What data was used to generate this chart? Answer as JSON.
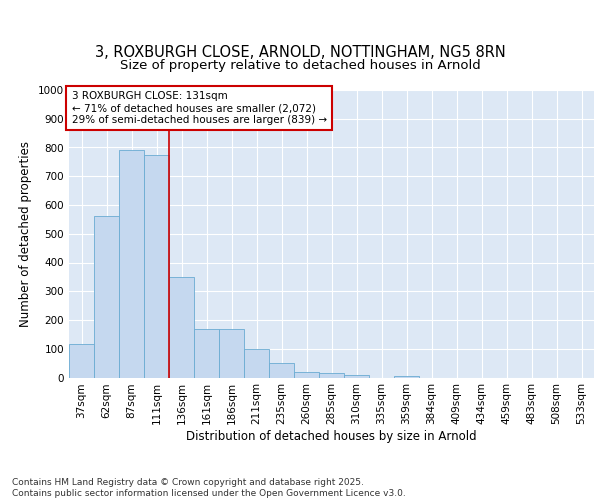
{
  "title_line1": "3, ROXBURGH CLOSE, ARNOLD, NOTTINGHAM, NG5 8RN",
  "title_line2": "Size of property relative to detached houses in Arnold",
  "xlabel": "Distribution of detached houses by size in Arnold",
  "ylabel": "Number of detached properties",
  "categories": [
    "37sqm",
    "62sqm",
    "87sqm",
    "111sqm",
    "136sqm",
    "161sqm",
    "186sqm",
    "211sqm",
    "235sqm",
    "260sqm",
    "285sqm",
    "310sqm",
    "335sqm",
    "359sqm",
    "384sqm",
    "409sqm",
    "434sqm",
    "459sqm",
    "483sqm",
    "508sqm",
    "533sqm"
  ],
  "values": [
    115,
    560,
    790,
    775,
    350,
    168,
    168,
    98,
    52,
    20,
    15,
    10,
    0,
    5,
    0,
    0,
    0,
    0,
    0,
    0,
    0
  ],
  "bar_color": "#c5d8ef",
  "bar_edge_color": "#6aabd2",
  "vline_x": 3.5,
  "vline_color": "#cc0000",
  "annotation_text": "3 ROXBURGH CLOSE: 131sqm\n← 71% of detached houses are smaller (2,072)\n29% of semi-detached houses are larger (839) →",
  "annotation_box_color": "#ffffff",
  "annotation_box_edge": "#cc0000",
  "ylim": [
    0,
    1000
  ],
  "yticks": [
    0,
    100,
    200,
    300,
    400,
    500,
    600,
    700,
    800,
    900,
    1000
  ],
  "background_color": "#dde8f5",
  "footer_text": "Contains HM Land Registry data © Crown copyright and database right 2025.\nContains public sector information licensed under the Open Government Licence v3.0.",
  "title_fontsize": 10.5,
  "subtitle_fontsize": 9.5,
  "axis_label_fontsize": 8.5,
  "tick_fontsize": 7.5,
  "annotation_fontsize": 7.5,
  "footer_fontsize": 6.5
}
